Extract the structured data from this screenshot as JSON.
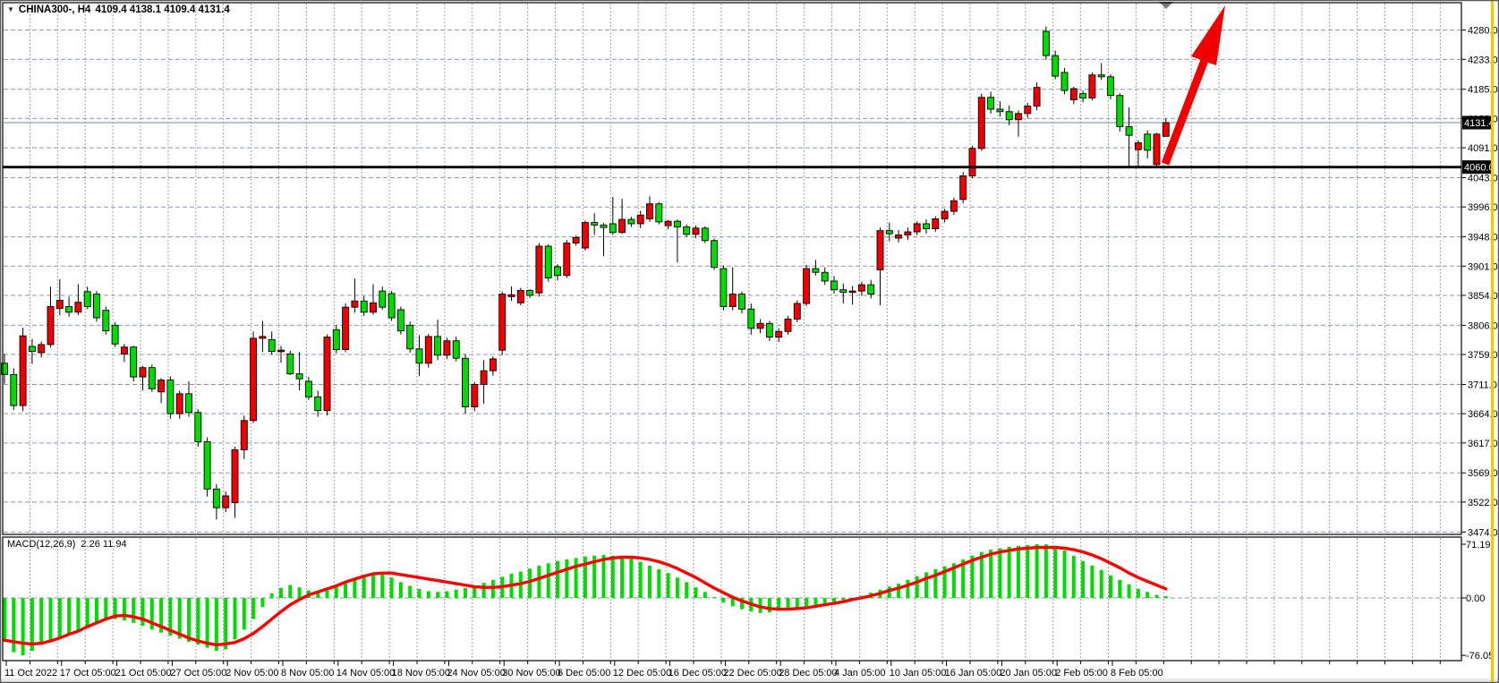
{
  "header": {
    "symbol": "CHINA300-, H4",
    "quote": "4109.4 4138.1 4109.4 4131.4"
  },
  "macd": {
    "name": "MACD(12,26,9)",
    "values": "2.26 11.94"
  },
  "colors": {
    "bull_candle": "#f20000",
    "bear_candle": "#00dc00",
    "wick": "#000000",
    "grid": "#98a1ad",
    "macd_histogram": "#00dc00",
    "macd_signal": "#ff0000",
    "support_line": "#000000",
    "current_price_line": "#8fa0b2",
    "badge_bg": "#000000",
    "badge_text": "#ffffff",
    "arrow": "#f00000",
    "yellow_edge_line": "#eec41f",
    "axis_text": "#000000"
  },
  "chart_data": {
    "type": "candlestick",
    "symbol": "CHINA300-",
    "timeframe": "H4",
    "ohlc_current": {
      "open": 4109.4,
      "high": 4138.1,
      "low": 4109.4,
      "close": 4131.4
    },
    "levels": {
      "horizontal_support_line": 4060.0,
      "current_price": 4131.4
    },
    "price_axis_labels": [
      "4280.0",
      "4233.0",
      "4185.0",
      "4138.0",
      "4091.0",
      "4043.0",
      "3996.0",
      "3948.0",
      "3901.0",
      "3854.0",
      "3806.0",
      "3759.0",
      "3711.0",
      "3664.0",
      "3617.0",
      "3569.0",
      "3522.0",
      "3474.0"
    ],
    "time_axis_labels": [
      "11 Oct 2022",
      "17 Oct 05:00",
      "21 Oct 05:00",
      "27 Oct 05:00",
      "2 Nov 05:00",
      "8 Nov 05:00",
      "14 Nov 05:00",
      "18 Nov 05:00",
      "24 Nov 05:00",
      "30 Nov 05:00",
      "6 Dec 05:00",
      "12 Dec 05:00",
      "16 Dec 05:00",
      "22 Dec 05:00",
      "28 Dec 05:00",
      "4 Jan 05:00",
      "10 Jan 05:00",
      "16 Jan 05:00",
      "20 Jan 05:00",
      "2 Feb 05:00",
      "8 Feb 05:00"
    ],
    "candles": [
      [
        3745,
        3760,
        3712,
        3727
      ],
      [
        3727,
        3737,
        3670,
        3677
      ],
      [
        3677,
        3802,
        3668,
        3789
      ],
      [
        3772,
        3784,
        3744,
        3764
      ],
      [
        3762,
        3780,
        3754,
        3775
      ],
      [
        3775,
        3868,
        3770,
        3836
      ],
      [
        3833,
        3880,
        3822,
        3846
      ],
      [
        3836,
        3852,
        3820,
        3827
      ],
      [
        3827,
        3872,
        3822,
        3843
      ],
      [
        3860,
        3868,
        3832,
        3836
      ],
      [
        3856,
        3861,
        3812,
        3818
      ],
      [
        3830,
        3836,
        3791,
        3797
      ],
      [
        3806,
        3811,
        3771,
        3776
      ],
      [
        3760,
        3776,
        3747,
        3771
      ],
      [
        3771,
        3773,
        3716,
        3723
      ],
      [
        3723,
        3741,
        3701,
        3738
      ],
      [
        3738,
        3743,
        3699,
        3704
      ],
      [
        3699,
        3721,
        3681,
        3718
      ],
      [
        3718,
        3724,
        3656,
        3664
      ],
      [
        3664,
        3701,
        3656,
        3696
      ],
      [
        3696,
        3716,
        3659,
        3666
      ],
      [
        3666,
        3671,
        3611,
        3619
      ],
      [
        3619,
        3626,
        3531,
        3543
      ],
      [
        3543,
        3551,
        3494,
        3513
      ],
      [
        3513,
        3539,
        3506,
        3532
      ],
      [
        3521,
        3611,
        3497,
        3606
      ],
      [
        3606,
        3661,
        3591,
        3653
      ],
      [
        3653,
        3796,
        3649,
        3785
      ],
      [
        3785,
        3813,
        3763,
        3788
      ],
      [
        3783,
        3796,
        3759,
        3764
      ],
      [
        3764,
        3773,
        3746,
        3766
      ],
      [
        3760,
        3765,
        3726,
        3728
      ],
      [
        3728,
        3763,
        3701,
        3720
      ],
      [
        3716,
        3723,
        3686,
        3691
      ],
      [
        3691,
        3701,
        3659,
        3669
      ],
      [
        3669,
        3791,
        3661,
        3787
      ],
      [
        3799,
        3806,
        3761,
        3767
      ],
      [
        3767,
        3841,
        3763,
        3835
      ],
      [
        3835,
        3881,
        3826,
        3845
      ],
      [
        3845,
        3853,
        3821,
        3827
      ],
      [
        3827,
        3872,
        3823,
        3842
      ],
      [
        3861,
        3868,
        3831,
        3835
      ],
      [
        3857,
        3861,
        3813,
        3818
      ],
      [
        3831,
        3836,
        3791,
        3797
      ],
      [
        3806,
        3812,
        3762,
        3768
      ],
      [
        3768,
        3790,
        3725,
        3745
      ],
      [
        3745,
        3792,
        3738,
        3788
      ],
      [
        3788,
        3815,
        3750,
        3758
      ],
      [
        3758,
        3786,
        3752,
        3781
      ],
      [
        3781,
        3788,
        3748,
        3753
      ],
      [
        3753,
        3760,
        3664,
        3675
      ],
      [
        3675,
        3715,
        3668,
        3711
      ],
      [
        3711,
        3750,
        3680,
        3733
      ],
      [
        3733,
        3756,
        3725,
        3752
      ],
      [
        3766,
        3860,
        3758,
        3856
      ],
      [
        3852,
        3868,
        3845,
        3855
      ],
      [
        3842,
        3866,
        3838,
        3862
      ],
      [
        3862,
        3864,
        3850,
        3854
      ],
      [
        3858,
        3938,
        3852,
        3933
      ],
      [
        3933,
        3936,
        3876,
        3882
      ],
      [
        3900,
        3904,
        3878,
        3886
      ],
      [
        3886,
        3943,
        3882,
        3938
      ],
      [
        3938,
        3950,
        3934,
        3947
      ],
      [
        3930,
        3974,
        3926,
        3971
      ],
      [
        3971,
        3986,
        3951,
        3967
      ],
      [
        3967,
        3970,
        3917,
        3963
      ],
      [
        3969,
        4012,
        3951,
        3955
      ],
      [
        3955,
        4009,
        3953,
        3976
      ],
      [
        3976,
        3980,
        3964,
        3969
      ],
      [
        3969,
        3990,
        3962,
        3983
      ],
      [
        3977,
        4013,
        3972,
        4001
      ],
      [
        4001,
        4004,
        3968,
        3972
      ],
      [
        3966,
        3975,
        3960,
        3973
      ],
      [
        3973,
        3976,
        3907,
        3964
      ],
      [
        3964,
        3968,
        3948,
        3952
      ],
      [
        3952,
        3966,
        3946,
        3962
      ],
      [
        3962,
        3965,
        3938,
        3942
      ],
      [
        3942,
        3945,
        3895,
        3899
      ],
      [
        3897,
        3902,
        3830,
        3836
      ],
      [
        3836,
        3899,
        3830,
        3856
      ],
      [
        3856,
        3860,
        3825,
        3832
      ],
      [
        3832,
        3841,
        3791,
        3801
      ],
      [
        3801,
        3816,
        3793,
        3809
      ],
      [
        3809,
        3813,
        3781,
        3787
      ],
      [
        3787,
        3801,
        3779,
        3796
      ],
      [
        3796,
        3821,
        3791,
        3816
      ],
      [
        3816,
        3846,
        3811,
        3841
      ],
      [
        3841,
        3903,
        3837,
        3897
      ],
      [
        3897,
        3911,
        3886,
        3891
      ],
      [
        3891,
        3899,
        3871,
        3877
      ],
      [
        3877,
        3885,
        3857,
        3863
      ],
      [
        3863,
        3873,
        3841,
        3859
      ],
      [
        3859,
        3869,
        3839,
        3861
      ],
      [
        3861,
        3876,
        3853,
        3871
      ],
      [
        3871,
        3879,
        3849,
        3856
      ],
      [
        3895,
        3963,
        3838,
        3958
      ],
      [
        3958,
        3971,
        3941,
        3953
      ],
      [
        3946,
        3959,
        3939,
        3951
      ],
      [
        3951,
        3963,
        3943,
        3956
      ],
      [
        3956,
        3973,
        3951,
        3969
      ],
      [
        3969,
        3976,
        3953,
        3961
      ],
      [
        3961,
        3981,
        3956,
        3977
      ],
      [
        3977,
        3993,
        3971,
        3989
      ],
      [
        3989,
        4011,
        3983,
        4006
      ],
      [
        4008,
        4052,
        4002,
        4046
      ],
      [
        4046,
        4094,
        4042,
        4090
      ],
      [
        4090,
        4178,
        4086,
        4172
      ],
      [
        4172,
        4181,
        4146,
        4153
      ],
      [
        4153,
        4166,
        4141,
        4149
      ],
      [
        4149,
        4159,
        4127,
        4136
      ],
      [
        4136,
        4151,
        4109,
        4146
      ],
      [
        4146,
        4163,
        4139,
        4158
      ],
      [
        4158,
        4196,
        4151,
        4188
      ],
      [
        4278,
        4286,
        4233,
        4239
      ],
      [
        4239,
        4247,
        4201,
        4206
      ],
      [
        4212,
        4219,
        4177,
        4183
      ],
      [
        4168,
        4189,
        4161,
        4186
      ],
      [
        4178,
        4183,
        4164,
        4171
      ],
      [
        4171,
        4212,
        4167,
        4208
      ],
      [
        4208,
        4227,
        4200,
        4205
      ],
      [
        4205,
        4209,
        4169,
        4175
      ],
      [
        4175,
        4179,
        4117,
        4125
      ],
      [
        4125,
        4156,
        4061,
        4111
      ],
      [
        4088,
        4103,
        4062,
        4099
      ],
      [
        4113,
        4119,
        4074,
        4087
      ],
      [
        4064,
        4115,
        4060,
        4113
      ],
      [
        4109.4,
        4138.1,
        4109.4,
        4131.4
      ]
    ],
    "macd": {
      "label": "MACD(12,26,9)",
      "current_macd": 2.26,
      "current_signal": 11.94,
      "axis_labels": [
        "71.19",
        "0.00",
        "-76.05"
      ],
      "histogram": [
        -55,
        -72,
        -76.05,
        -70,
        -62,
        -56,
        -52,
        -48,
        -44,
        -38,
        -33,
        -29,
        -28,
        -30,
        -33,
        -37,
        -42,
        -46,
        -50,
        -54,
        -58,
        -62,
        -66,
        -70,
        -68,
        -55,
        -42,
        -28,
        -12,
        6,
        13,
        17,
        14,
        10,
        7,
        10,
        14,
        19,
        25,
        30,
        32,
        31,
        27,
        21,
        16,
        12,
        9,
        8,
        9,
        11,
        13,
        16,
        20,
        24,
        28,
        32,
        35,
        39,
        43,
        46,
        49,
        51,
        53,
        55,
        56,
        57,
        56,
        54,
        52,
        48,
        43,
        38,
        33,
        27,
        21,
        14,
        8,
        1,
        -6,
        -11,
        -15,
        -18,
        -20,
        -19,
        -17,
        -15,
        -13,
        -11,
        -9,
        -7,
        -5,
        -3,
        0,
        3,
        7,
        11,
        15,
        19,
        24,
        29,
        34,
        38,
        42,
        46,
        51,
        56,
        61,
        64,
        66,
        68,
        69,
        70,
        71.19,
        71,
        68,
        63,
        56,
        49,
        43,
        37,
        30,
        24,
        18,
        12,
        8,
        4,
        2.26
      ],
      "signal": [
        -56,
        -58,
        -60,
        -61,
        -60,
        -57,
        -53,
        -48,
        -44,
        -38,
        -33,
        -28,
        -24,
        -23,
        -25,
        -28,
        -33,
        -38,
        -43,
        -48,
        -53,
        -57,
        -60,
        -62,
        -61,
        -59,
        -54,
        -47,
        -38,
        -28,
        -18,
        -9,
        -2,
        4,
        8,
        12,
        16,
        21,
        25,
        29,
        32,
        33,
        33,
        31,
        29,
        27,
        25,
        23,
        21,
        19,
        17,
        15,
        14,
        14,
        15,
        17,
        19,
        22,
        26,
        30,
        34,
        38,
        42,
        45,
        48,
        51,
        53,
        54,
        54,
        53,
        51,
        48,
        44,
        39,
        33,
        27,
        20,
        13,
        7,
        1,
        -4,
        -8,
        -12,
        -14,
        -15,
        -15,
        -14,
        -13,
        -11,
        -9,
        -7,
        -5,
        -2,
        0,
        3,
        6,
        10,
        13,
        17,
        21,
        26,
        30,
        35,
        40,
        45,
        50,
        54,
        58,
        61,
        63,
        65,
        66,
        67,
        67,
        67,
        66,
        64,
        61,
        57,
        52,
        46,
        40,
        33,
        27,
        22,
        17,
        11.94
      ]
    },
    "annotations": {
      "arrow": {
        "shape": "up-right-arrow",
        "color": "#f00000"
      },
      "chart_end_marker": {
        "shape": "down-triangle",
        "color": "#7a7a7a"
      }
    },
    "legend_position": "none",
    "grid": true
  }
}
